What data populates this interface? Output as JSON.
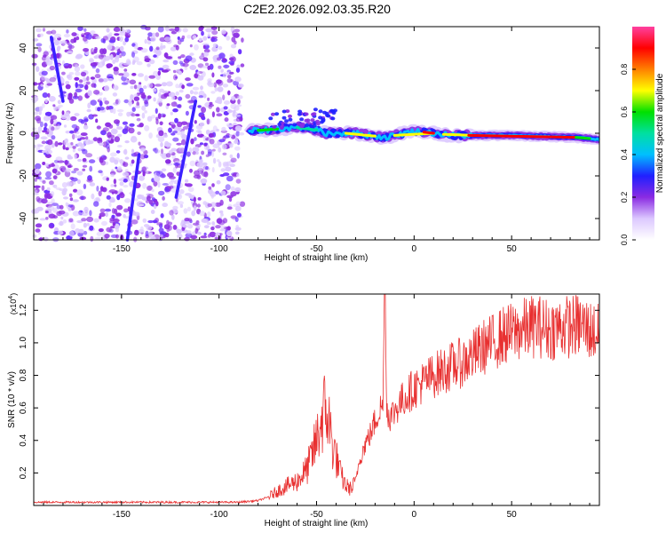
{
  "figure_title": "C2E2.2026.092.03.35.R20",
  "chart_data": [
    {
      "type": "heatmap",
      "title": "C2E2.2026.092.03.35.R20",
      "xlabel": "Height of straight line (km)",
      "ylabel": "Frequency (Hz)",
      "xlim": [
        -195,
        95
      ],
      "ylim": [
        -50,
        50
      ],
      "xticks": [
        -150,
        -100,
        -50,
        0,
        50
      ],
      "yticks": [
        -40,
        -20,
        0,
        20,
        40
      ],
      "colorbar": {
        "label": "Normalized spectral amplitude",
        "range": [
          0,
          1
        ],
        "ticks": [
          0.0,
          0.2,
          0.4,
          0.6,
          0.8
        ],
        "colormap": [
          "#ffffff",
          "#dcc8ff",
          "#8a2be2",
          "#2020ff",
          "#00bfff",
          "#00e0a0",
          "#00e000",
          "#ffff00",
          "#ff8000",
          "#ff0000",
          "#ff40a0"
        ]
      },
      "features": {
        "noise_region_km": [
          -195,
          -88
        ],
        "tonal_line_km": [
          -85,
          95
        ],
        "tonal_line_center_hz": [
          {
            "km": -85,
            "hz": 1
          },
          {
            "km": -70,
            "hz": 2
          },
          {
            "km": -55,
            "hz": 3
          },
          {
            "km": -45,
            "hz": 0
          },
          {
            "km": -30,
            "hz": 0
          },
          {
            "km": -15,
            "hz": -2
          },
          {
            "km": 0,
            "hz": 1
          },
          {
            "km": 20,
            "hz": -1
          },
          {
            "km": 50,
            "hz": -1
          },
          {
            "km": 85,
            "hz": -2
          },
          {
            "km": 95,
            "hz": -3
          }
        ],
        "chirps": [
          {
            "from_km": -122,
            "from_hz": -30,
            "to_km": -112,
            "to_hz": 15
          },
          {
            "from_km": -147,
            "from_hz": -50,
            "to_km": -141,
            "to_hz": -10
          },
          {
            "from_km": -186,
            "from_hz": 45,
            "to_km": -180,
            "to_hz": 15
          }
        ]
      }
    },
    {
      "type": "line",
      "xlabel": "Height of straight line (km)",
      "ylabel": "SNR (10 * v/v)",
      "y_multiplier": "(x10",
      "y_multiplier_exp": "4",
      "y_multiplier_close": ")",
      "xlim": [
        -195,
        95
      ],
      "ylim": [
        0,
        1.3
      ],
      "xticks": [
        -150,
        -100,
        -50,
        0,
        50
      ],
      "yticks": [
        0.2,
        0.4,
        0.6,
        0.8,
        1.0,
        1.2
      ],
      "color": "#e83030",
      "series": [
        {
          "name": "SNR",
          "x": [
            -195,
            -170,
            -140,
            -110,
            -90,
            -80,
            -75,
            -70,
            -65,
            -60,
            -55,
            -52,
            -50,
            -48,
            -46,
            -44,
            -42,
            -40,
            -38,
            -35,
            -32,
            -30,
            -28,
            -25,
            -22,
            -20,
            -18,
            -16,
            -15,
            -14,
            -13,
            -12,
            -10,
            -8,
            -5,
            -2,
            0,
            5,
            10,
            15,
            20,
            25,
            30,
            35,
            40,
            45,
            50,
            55,
            60,
            65,
            70,
            75,
            80,
            85,
            90,
            95
          ],
          "y": [
            0.02,
            0.02,
            0.02,
            0.02,
            0.02,
            0.03,
            0.05,
            0.09,
            0.12,
            0.15,
            0.22,
            0.32,
            0.4,
            0.5,
            0.58,
            0.55,
            0.38,
            0.3,
            0.2,
            0.12,
            0.1,
            0.15,
            0.28,
            0.38,
            0.45,
            0.52,
            0.58,
            0.62,
            1.28,
            0.6,
            0.56,
            0.55,
            0.58,
            0.62,
            0.66,
            0.7,
            0.72,
            0.76,
            0.8,
            0.83,
            0.86,
            0.88,
            0.92,
            0.97,
            1.0,
            1.04,
            1.06,
            1.08,
            1.1,
            1.1,
            1.08,
            1.1,
            1.1,
            1.11,
            1.08,
            1.05
          ]
        }
      ]
    }
  ]
}
